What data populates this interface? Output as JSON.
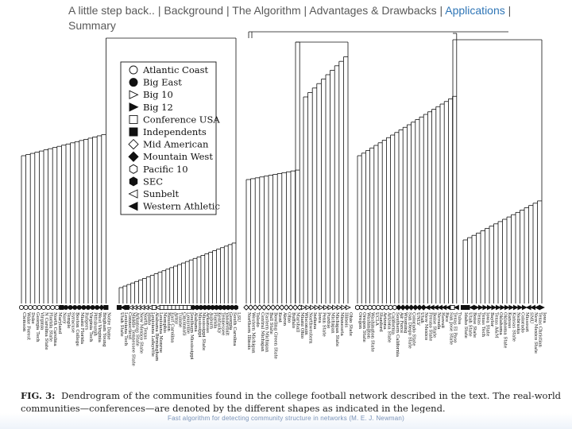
{
  "nav": {
    "items": [
      {
        "label": "A little step back..",
        "active": false
      },
      {
        "label": "Background",
        "active": false
      },
      {
        "label": "The Algorithm",
        "active": false
      },
      {
        "label": "Advantages & Drawbacks",
        "active": false
      },
      {
        "label": "Applications",
        "active": true
      },
      {
        "label": "Summary",
        "active": false
      }
    ],
    "separator": " | "
  },
  "legend": [
    {
      "label": "Atlantic Coast",
      "symbol": "circle-open"
    },
    {
      "label": "Big East",
      "symbol": "circle-filled"
    },
    {
      "label": "Big 10",
      "symbol": "triangle-right-open"
    },
    {
      "label": "Big 12",
      "symbol": "triangle-right-filled"
    },
    {
      "label": "Conference USA",
      "symbol": "square-open"
    },
    {
      "label": "Independents",
      "symbol": "square-filled"
    },
    {
      "label": "Mid American",
      "symbol": "diamond-open"
    },
    {
      "label": "Mountain West",
      "symbol": "diamond-filled"
    },
    {
      "label": "Pacific 10",
      "symbol": "hexagon-open"
    },
    {
      "label": "SEC",
      "symbol": "hexagon-filled"
    },
    {
      "label": "Sunbelt",
      "symbol": "triangle-left-open"
    },
    {
      "label": "Western Athletic",
      "symbol": "triangle-left-filled"
    }
  ],
  "communities": [
    {
      "id": "c1",
      "leaves": [
        "Clemson",
        "Wake Forest",
        "Duke",
        "Georgia Tech",
        "Virginia",
        "N Carolina State",
        "Florida State",
        "North Carolina",
        "Maryland",
        "Navy",
        "Temple",
        "Syracuse",
        "Boston College",
        "Miami Florida",
        "Rutgers",
        "Virginia Tech",
        "Pittsburgh",
        "West Virginia",
        "Brigham Young",
        "Notre Dame"
      ],
      "symbols": [
        "circle-open",
        "circle-open",
        "circle-open",
        "circle-open",
        "circle-open",
        "circle-open",
        "circle-open",
        "circle-open",
        "circle-open",
        "square-filled",
        "circle-filled",
        "circle-filled",
        "circle-filled",
        "circle-filled",
        "circle-filled",
        "circle-filled",
        "circle-filled",
        "circle-filled",
        "diamond-filled",
        "square-filled"
      ]
    },
    {
      "id": "c2",
      "leaves": [
        "Utah State",
        "Louisiana Tech",
        "Connecticut",
        "Middle Tennessee State",
        "Arkansas State",
        "New Mexico State",
        "North Texas",
        "Idaho",
        "Louisiana Lafayette",
        "Alabama Birmingham",
        "Louisiana Monroe",
        "Memphis",
        "Houston",
        "East Carolina",
        "Army",
        "Tulane",
        "Cincinnati",
        "Louisville",
        "Southern Mississippi",
        "Alabama",
        "Mississippi",
        "Mississippi State",
        "Arkansas",
        "Auburn",
        "Florida",
        "Kentucky",
        "Tennessee",
        "Vanderbilt",
        "Georgia",
        "South Carolina",
        "LSU"
      ],
      "symbols": [
        "square-filled",
        "triangle-left-filled",
        "square-filled",
        "triangle-left-open",
        "triangle-left-open",
        "triangle-left-open",
        "triangle-left-open",
        "triangle-left-open",
        "triangle-left-open",
        "square-open",
        "triangle-left-open",
        "square-open",
        "square-open",
        "square-open",
        "square-open",
        "square-open",
        "square-open",
        "square-open",
        "square-open",
        "hexagon-filled",
        "hexagon-filled",
        "hexagon-filled",
        "hexagon-filled",
        "hexagon-filled",
        "hexagon-filled",
        "hexagon-filled",
        "hexagon-filled",
        "hexagon-filled",
        "hexagon-filled",
        "hexagon-filled",
        "hexagon-filled"
      ]
    },
    {
      "id": "c3",
      "leaves": [
        "Northern Illinois",
        "Western Michigan",
        "Toledo",
        "Central Michigan",
        "Eastern Michigan",
        "Ball State",
        "Bowling Green State",
        "Kent",
        "Akron",
        "Ohio",
        "Buffalo",
        "Marshall",
        "Miami Ohio"
      ],
      "symbols": [
        "diamond-open",
        "diamond-open",
        "diamond-open",
        "diamond-open",
        "diamond-open",
        "diamond-open",
        "diamond-open",
        "diamond-open",
        "diamond-open",
        "diamond-open",
        "diamond-open",
        "diamond-open",
        "diamond-open"
      ]
    },
    {
      "id": "c4",
      "leaves": [
        "Wisconsin",
        "Northwestern",
        "Indiana",
        "Iowa",
        "Penn State",
        "Purdue",
        "Michigan",
        "Michigan State",
        "Minnesota",
        "Illinois",
        "Ohio State"
      ],
      "symbols": [
        "triangle-right-open",
        "triangle-right-open",
        "triangle-right-open",
        "triangle-right-open",
        "triangle-right-open",
        "triangle-right-open",
        "triangle-right-open",
        "triangle-right-open",
        "triangle-right-open",
        "triangle-right-open",
        "triangle-right-open"
      ]
    },
    {
      "id": "c5",
      "leaves": [
        "Oregon",
        "Oregon State",
        "Washington",
        "Washington State",
        "UCLA",
        "Stanford",
        "Arizona",
        "Arizona State",
        "California",
        "Southern California",
        "Air Force",
        "Wyoming",
        "San Diego State",
        "Colorado State",
        "UNLV",
        "Utah",
        "New Mexico",
        "Fresno State",
        "Boise State",
        "Nevada",
        "Hawaii",
        "Rice",
        "San Jose State",
        "Texas El Paso",
        "Tulsa"
      ],
      "symbols": [
        "hexagon-open",
        "hexagon-open",
        "hexagon-open",
        "hexagon-open",
        "hexagon-open",
        "hexagon-open",
        "hexagon-open",
        "hexagon-open",
        "hexagon-open",
        "hexagon-open",
        "diamond-filled",
        "diamond-filled",
        "diamond-filled",
        "diamond-filled",
        "diamond-filled",
        "diamond-filled",
        "diamond-filled",
        "triangle-left-filled",
        "triangle-left-filled",
        "triangle-left-filled",
        "triangle-left-filled",
        "triangle-left-filled",
        "triangle-left-filled",
        "square-open",
        "triangle-left-filled"
      ]
    },
    {
      "id": "c6",
      "leaves": [
        "Idaho State",
        "Utah State",
        "Boise State",
        "Texas",
        "Texas Tech",
        "Iowa State",
        "Baylor",
        "Texas A&M",
        "Oklahoma",
        "Oklahoma State",
        "Kansas",
        "Kansas State",
        "Nebraska",
        "Colorado",
        "Missouri",
        "SMU",
        "New Mexico State",
        "Texas Christian",
        "Iowa"
      ],
      "symbols": [
        "square-filled",
        "square-filled",
        "triangle-left-filled",
        "triangle-right-filled",
        "triangle-right-filled",
        "triangle-right-filled",
        "triangle-right-filled",
        "triangle-right-filled",
        "triangle-right-filled",
        "triangle-right-filled",
        "triangle-right-filled",
        "triangle-right-filled",
        "triangle-right-filled",
        "triangle-right-filled",
        "triangle-right-filled",
        "triangle-left-filled",
        "triangle-left-filled",
        "triangle-left-filled",
        "triangle-right-filled"
      ]
    }
  ],
  "caption": {
    "label": "FIG. 3:",
    "text": "Dendrogram of the communities found in the college football network described in the text. The real-world communities—conferences—are denoted by the different shapes as indicated in the legend."
  },
  "footer": "Fast algorithm for detecting community structure in networks (M. E. J. Newman)",
  "colors": {
    "nav_text": "#595959",
    "nav_active": "#2e75b6",
    "footer_text": "#7a93b8",
    "ink": "#111111"
  }
}
